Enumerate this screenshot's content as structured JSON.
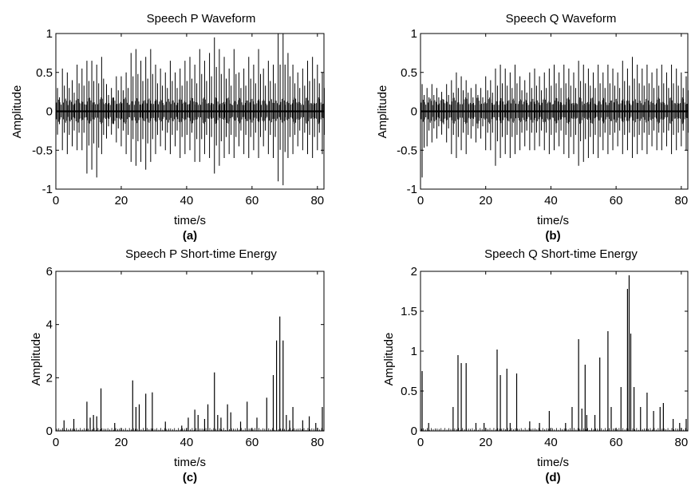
{
  "chart_data": [
    {
      "id": "a",
      "type": "line",
      "title": "Speech P Waveform",
      "xlabel": "time/s",
      "ylabel": "Amplitude",
      "caption": "(a)",
      "xlim": [
        0,
        82
      ],
      "ylim": [
        -1,
        1
      ],
      "xticks": [
        0,
        20,
        40,
        60,
        80
      ],
      "yticks": [
        -1,
        -0.5,
        0,
        0.5,
        1
      ],
      "ytick_labels": [
        "-1",
        "-0.5",
        "0",
        "0.5",
        "1"
      ],
      "baseline": 0,
      "series": [
        {
          "x": [
            0.5,
            2,
            3.5,
            5,
            6.5,
            8,
            9.5,
            11,
            12.5,
            14,
            15.5,
            17,
            18.5,
            20,
            21.5,
            23,
            24.5,
            26,
            27.5,
            29,
            30.5,
            32,
            33.5,
            35,
            36.5,
            38,
            39.5,
            41,
            42.5,
            44,
            45.5,
            47,
            48.5,
            50,
            51.5,
            53,
            54.5,
            56,
            57.5,
            59,
            60.5,
            62,
            63.5,
            65,
            66.5,
            68,
            69.5,
            71,
            72.5,
            74,
            75.5,
            77,
            78.5,
            80,
            81.5
          ],
          "y_max": [
            0.3,
            0.55,
            0.5,
            0.4,
            0.6,
            0.55,
            0.65,
            0.65,
            0.6,
            0.7,
            0.35,
            0.3,
            0.45,
            0.45,
            0.5,
            0.75,
            0.8,
            0.65,
            0.7,
            0.8,
            0.6,
            0.55,
            0.5,
            0.65,
            0.5,
            0.55,
            0.65,
            0.7,
            0.6,
            0.8,
            0.65,
            0.75,
            0.95,
            0.8,
            0.7,
            0.55,
            0.8,
            0.5,
            0.55,
            0.7,
            0.6,
            0.8,
            0.55,
            0.65,
            0.6,
            1.0,
            1.0,
            0.75,
            0.6,
            0.5,
            0.55,
            0.65,
            0.7,
            0.6,
            0.5
          ],
          "y_min": [
            -0.3,
            -0.5,
            -0.55,
            -0.45,
            -0.5,
            -0.5,
            -0.8,
            -0.75,
            -0.85,
            -0.55,
            -0.35,
            -0.3,
            -0.4,
            -0.45,
            -0.55,
            -0.65,
            -0.7,
            -0.65,
            -0.75,
            -0.65,
            -0.55,
            -0.45,
            -0.5,
            -0.55,
            -0.45,
            -0.6,
            -0.55,
            -0.5,
            -0.65,
            -0.65,
            -0.55,
            -0.6,
            -0.8,
            -0.7,
            -0.6,
            -0.55,
            -0.6,
            -0.45,
            -0.55,
            -0.6,
            -0.5,
            -0.6,
            -0.45,
            -0.55,
            -0.6,
            -0.9,
            -0.95,
            -0.6,
            -0.55,
            -0.45,
            -0.5,
            -0.55,
            -0.6,
            -0.5,
            -0.55
          ]
        }
      ]
    },
    {
      "id": "b",
      "type": "line",
      "title": "Speech Q Waveform",
      "xlabel": "time/s",
      "ylabel": "Amplitude",
      "caption": "(b)",
      "xlim": [
        0,
        82
      ],
      "ylim": [
        -1,
        1
      ],
      "xticks": [
        0,
        20,
        40,
        60,
        80
      ],
      "yticks": [
        -1,
        -0.5,
        0,
        0.5,
        1
      ],
      "ytick_labels": [
        "-1",
        "-0.5",
        "0",
        "0.5",
        "1"
      ],
      "baseline": 0,
      "series": [
        {
          "x": [
            0.5,
            2,
            3.5,
            5,
            6.5,
            8,
            9.5,
            11,
            12.5,
            14,
            15.5,
            17,
            18.5,
            20,
            21.5,
            23,
            24.5,
            26,
            27.5,
            29,
            30.5,
            32,
            33.5,
            35,
            36.5,
            38,
            39.5,
            41,
            42.5,
            44,
            45.5,
            47,
            48.5,
            50,
            51.5,
            53,
            54.5,
            56,
            57.5,
            59,
            60.5,
            62,
            63.5,
            65,
            66.5,
            68,
            69.5,
            71,
            72.5,
            74,
            75.5,
            77,
            78.5,
            80,
            81.5
          ],
          "y_max": [
            0.35,
            0.3,
            0.35,
            0.3,
            0.25,
            0.35,
            0.4,
            0.5,
            0.45,
            0.4,
            0.3,
            0.35,
            0.3,
            0.45,
            0.4,
            0.55,
            0.6,
            0.55,
            0.5,
            0.6,
            0.45,
            0.4,
            0.5,
            0.55,
            0.45,
            0.5,
            0.55,
            0.6,
            0.5,
            0.6,
            0.55,
            0.5,
            0.65,
            0.6,
            0.55,
            0.5,
            0.6,
            0.5,
            0.6,
            0.55,
            0.5,
            0.65,
            0.55,
            0.7,
            0.6,
            0.55,
            0.6,
            0.5,
            0.55,
            0.6,
            0.5,
            0.6,
            0.55,
            0.5,
            0.45
          ],
          "y_min": [
            -0.85,
            -0.45,
            -0.4,
            -0.35,
            -0.3,
            -0.4,
            -0.55,
            -0.6,
            -0.5,
            -0.55,
            -0.35,
            -0.4,
            -0.35,
            -0.5,
            -0.5,
            -0.7,
            -0.6,
            -0.55,
            -0.6,
            -0.55,
            -0.5,
            -0.45,
            -0.5,
            -0.5,
            -0.45,
            -0.5,
            -0.55,
            -0.5,
            -0.45,
            -0.55,
            -0.6,
            -0.55,
            -0.7,
            -0.65,
            -0.6,
            -0.55,
            -0.6,
            -0.5,
            -0.55,
            -0.5,
            -0.45,
            -0.55,
            -0.5,
            -0.6,
            -0.55,
            -0.5,
            -0.55,
            -0.45,
            -0.5,
            -0.5,
            -0.45,
            -0.55,
            -0.5,
            -0.45,
            -0.5
          ]
        }
      ]
    },
    {
      "id": "c",
      "type": "bar",
      "title": "Speech P Short-time Energy",
      "xlabel": "time/s",
      "ylabel": "Amplitude",
      "caption": "(c)",
      "xlim": [
        0,
        82
      ],
      "ylim": [
        0,
        6
      ],
      "xticks": [
        0,
        20,
        40,
        60,
        80
      ],
      "yticks": [
        0,
        2,
        4,
        6
      ],
      "ytick_labels": [
        "0",
        "2",
        "4",
        "6"
      ],
      "baseline": 0,
      "series": [
        {
          "x": [
            2.5,
            5.5,
            9.5,
            10.5,
            11.5,
            12.5,
            13.8,
            18,
            23.5,
            24.5,
            25.5,
            27.5,
            29.5,
            33.5,
            38.5,
            40.5,
            42.5,
            43.5,
            45.5,
            46.5,
            48.5,
            49.5,
            50.5,
            52.5,
            53.5,
            56.5,
            58.5,
            61.5,
            64.5,
            66.5,
            67.5,
            68.5,
            69.5,
            70.5,
            71.5,
            72.5,
            75.5,
            77.5,
            79.5,
            81.5
          ],
          "y": [
            0.4,
            0.45,
            1.1,
            0.5,
            0.6,
            0.55,
            1.6,
            0.3,
            1.9,
            0.9,
            1.0,
            1.4,
            1.45,
            0.35,
            0.2,
            0.5,
            0.8,
            0.6,
            0.45,
            1.0,
            2.2,
            0.6,
            0.5,
            1.0,
            0.7,
            0.35,
            1.1,
            0.5,
            1.25,
            2.1,
            3.4,
            4.3,
            3.4,
            0.6,
            0.4,
            0.9,
            0.4,
            0.55,
            0.3,
            0.9
          ]
        }
      ]
    },
    {
      "id": "d",
      "type": "bar",
      "title": "Speech Q Short-time Energy",
      "xlabel": "time/s",
      "ylabel": "Amplitude",
      "caption": "(d)",
      "xlim": [
        0,
        82
      ],
      "ylim": [
        0,
        2
      ],
      "xticks": [
        0,
        20,
        40,
        60,
        80
      ],
      "yticks": [
        0,
        0.5,
        1,
        1.5,
        2
      ],
      "ytick_labels": [
        "0",
        "0.5",
        "1",
        "1.5",
        "2"
      ],
      "baseline": 0,
      "series": [
        {
          "x": [
            0.5,
            2.5,
            10,
            11.5,
            12.5,
            14,
            17,
            19.5,
            23.5,
            24.5,
            26.5,
            27.5,
            29.5,
            33.5,
            36.5,
            39.5,
            44.5,
            46.5,
            48.5,
            49.5,
            50.5,
            51,
            53.5,
            55,
            57.5,
            58.5,
            61.5,
            63.5,
            64,
            64.5,
            65.5,
            67.5,
            69.5,
            71.5,
            73.5,
            74.5,
            77.5,
            79.5,
            81.5
          ],
          "y": [
            0.75,
            0.1,
            0.3,
            0.95,
            0.85,
            0.85,
            0.1,
            0.1,
            1.02,
            0.7,
            0.78,
            0.1,
            0.72,
            0.12,
            0.1,
            0.25,
            0.1,
            0.3,
            1.15,
            0.28,
            0.83,
            0.2,
            0.2,
            0.92,
            1.25,
            0.3,
            0.55,
            1.78,
            1.95,
            1.22,
            0.55,
            0.3,
            0.48,
            0.25,
            0.3,
            0.35,
            0.15,
            0.1,
            0.15
          ]
        }
      ]
    }
  ]
}
